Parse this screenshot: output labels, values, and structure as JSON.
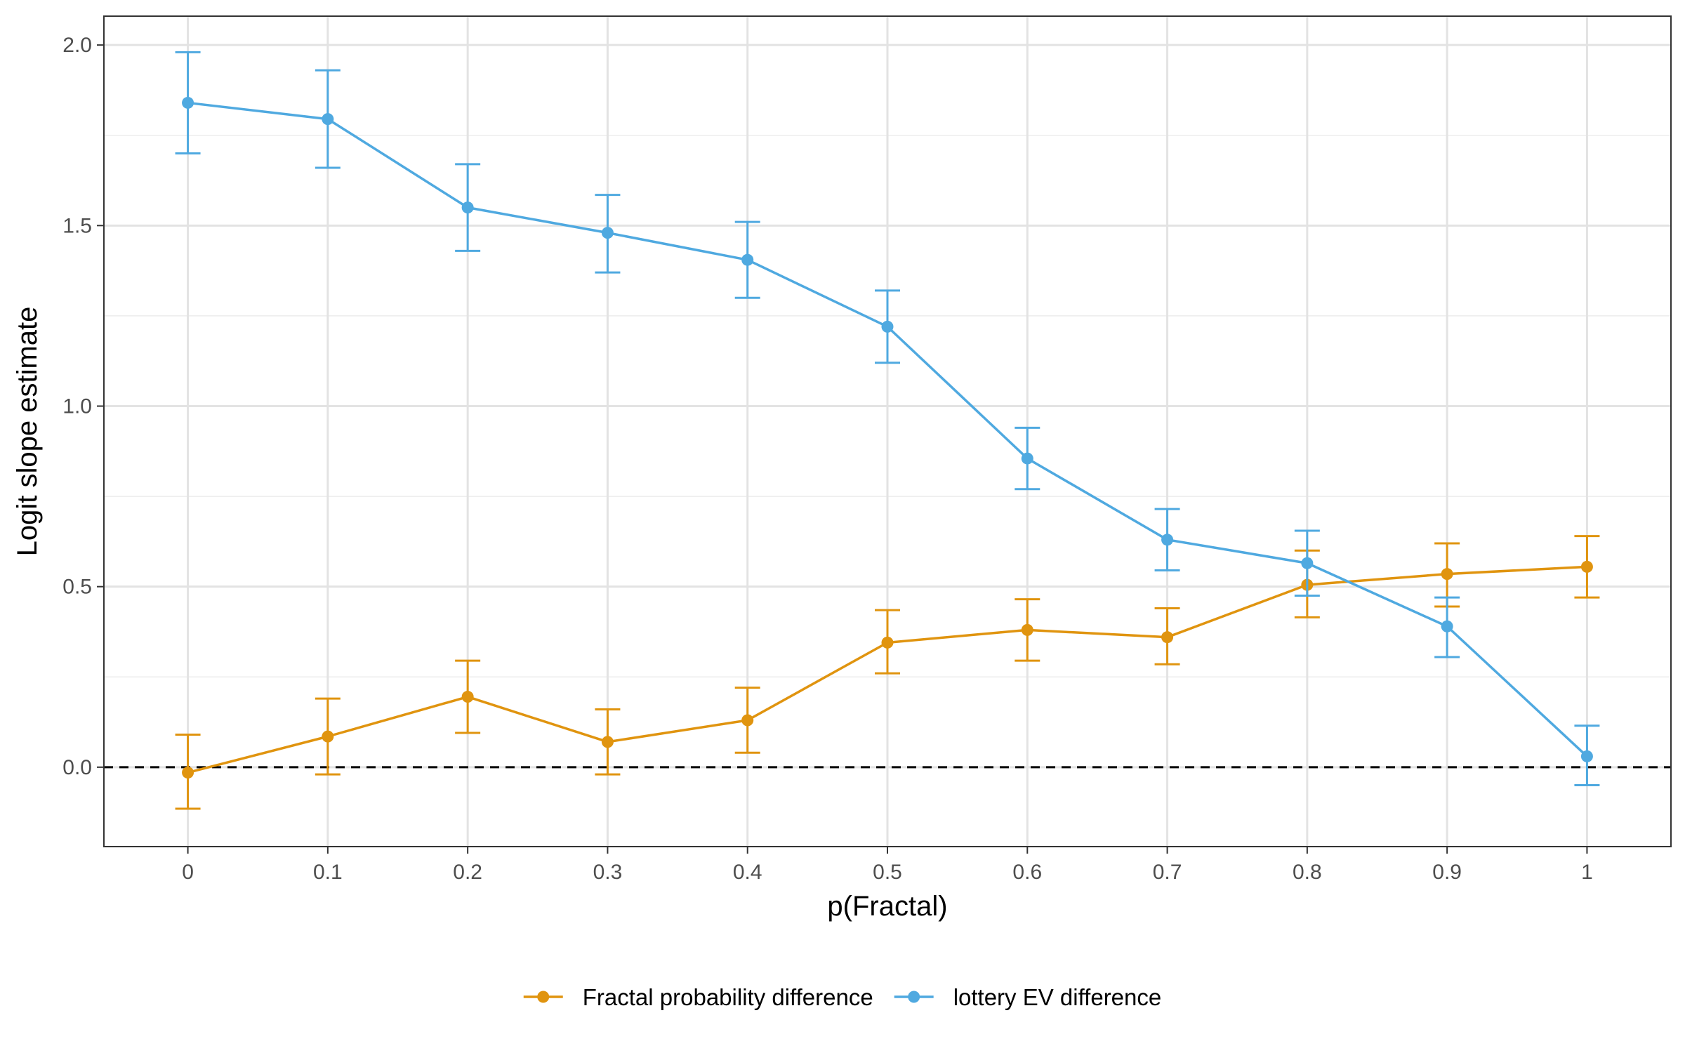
{
  "chart_data": {
    "type": "line",
    "xlabel": "p(Fractal)",
    "ylabel": "Logit slope estimate",
    "x": [
      0,
      0.1,
      0.2,
      0.3,
      0.4,
      0.5,
      0.6,
      0.7,
      0.8,
      0.9,
      1
    ],
    "x_tick_labels": [
      "0",
      "0.1",
      "0.2",
      "0.3",
      "0.4",
      "0.5",
      "0.6",
      "0.7",
      "0.8",
      "0.9",
      "1"
    ],
    "y_ticks": [
      0.0,
      0.5,
      1.0,
      1.5,
      2.0
    ],
    "y_tick_labels": [
      "0.0",
      "0.5",
      "1.0",
      "1.5",
      "2.0"
    ],
    "xlim": [
      -0.06,
      1.06
    ],
    "ylim": [
      -0.22,
      2.08
    ],
    "grid": true,
    "reference_line": {
      "y": 0,
      "style": "dashed",
      "color": "#000000"
    },
    "legend": {
      "position": "bottom"
    },
    "series": [
      {
        "name": "Fractal probability difference",
        "color": "#E0940F",
        "values": [
          -0.015,
          0.085,
          0.195,
          0.07,
          0.13,
          0.345,
          0.38,
          0.36,
          0.505,
          0.535,
          0.555
        ],
        "lower": [
          -0.115,
          -0.02,
          0.095,
          -0.02,
          0.04,
          0.26,
          0.295,
          0.285,
          0.415,
          0.445,
          0.47
        ],
        "upper": [
          0.09,
          0.19,
          0.295,
          0.16,
          0.22,
          0.435,
          0.465,
          0.44,
          0.6,
          0.62,
          0.64
        ]
      },
      {
        "name": "lottery EV difference",
        "color": "#4FA9E0",
        "values": [
          1.84,
          1.795,
          1.55,
          1.48,
          1.405,
          1.22,
          0.855,
          0.63,
          0.565,
          0.39,
          0.03
        ],
        "lower": [
          1.7,
          1.66,
          1.43,
          1.37,
          1.3,
          1.12,
          0.77,
          0.545,
          0.475,
          0.305,
          -0.05
        ],
        "upper": [
          1.98,
          1.93,
          1.67,
          1.585,
          1.51,
          1.32,
          0.94,
          0.715,
          0.655,
          0.47,
          0.115
        ]
      }
    ]
  }
}
